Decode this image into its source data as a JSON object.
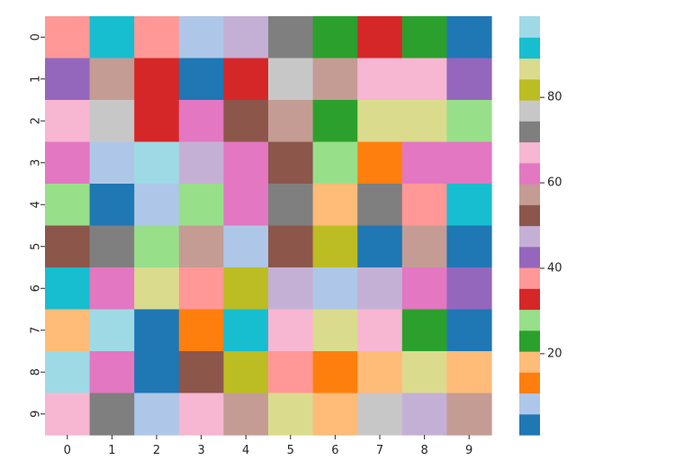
{
  "chart_data": {
    "type": "heatmap",
    "title": "",
    "xlabel": "",
    "ylabel": "",
    "x_categories": [
      "0",
      "1",
      "2",
      "3",
      "4",
      "5",
      "6",
      "7",
      "8",
      "9"
    ],
    "y_categories": [
      "0",
      "1",
      "2",
      "3",
      "4",
      "5",
      "6",
      "7",
      "8",
      "9"
    ],
    "values": [
      [
        38,
        92,
        38,
        7,
        47,
        72,
        22,
        32,
        22,
        2
      ],
      [
        42,
        57,
        32,
        2,
        32,
        77,
        57,
        67,
        67,
        42
      ],
      [
        67,
        77,
        32,
        62,
        52,
        57,
        22,
        87,
        87,
        27
      ],
      [
        62,
        7,
        97,
        47,
        62,
        52,
        27,
        12,
        62,
        62
      ],
      [
        27,
        2,
        7,
        27,
        62,
        72,
        17,
        72,
        38,
        92
      ],
      [
        52,
        72,
        27,
        57,
        7,
        52,
        82,
        2,
        57,
        2
      ],
      [
        92,
        62,
        87,
        38,
        82,
        47,
        7,
        47,
        62,
        42
      ],
      [
        17,
        97,
        2,
        12,
        92,
        67,
        87,
        67,
        22,
        2
      ],
      [
        97,
        62,
        2,
        52,
        82,
        38,
        12,
        17,
        87,
        17
      ],
      [
        67,
        72,
        7,
        67,
        57,
        87,
        17,
        77,
        47,
        57
      ]
    ],
    "vmin": 0,
    "vmax": 100,
    "colormap": "tab20",
    "colormap_colors": [
      "#1f77b4",
      "#aec7e8",
      "#ff7f0e",
      "#ffbb78",
      "#2ca02c",
      "#98df8a",
      "#d62728",
      "#ff9896",
      "#9467bd",
      "#c5b0d5",
      "#8c564b",
      "#c49c94",
      "#e377c2",
      "#f7b6d2",
      "#7f7f7f",
      "#c7c7c7",
      "#bcbd22",
      "#dbdb8d",
      "#17becf",
      "#9edae5"
    ],
    "colorbar": {
      "ticks": [
        20,
        40,
        60,
        80
      ],
      "tick_labels": [
        "20",
        "40",
        "60",
        "80"
      ],
      "placement": "right"
    },
    "grid": false
  }
}
